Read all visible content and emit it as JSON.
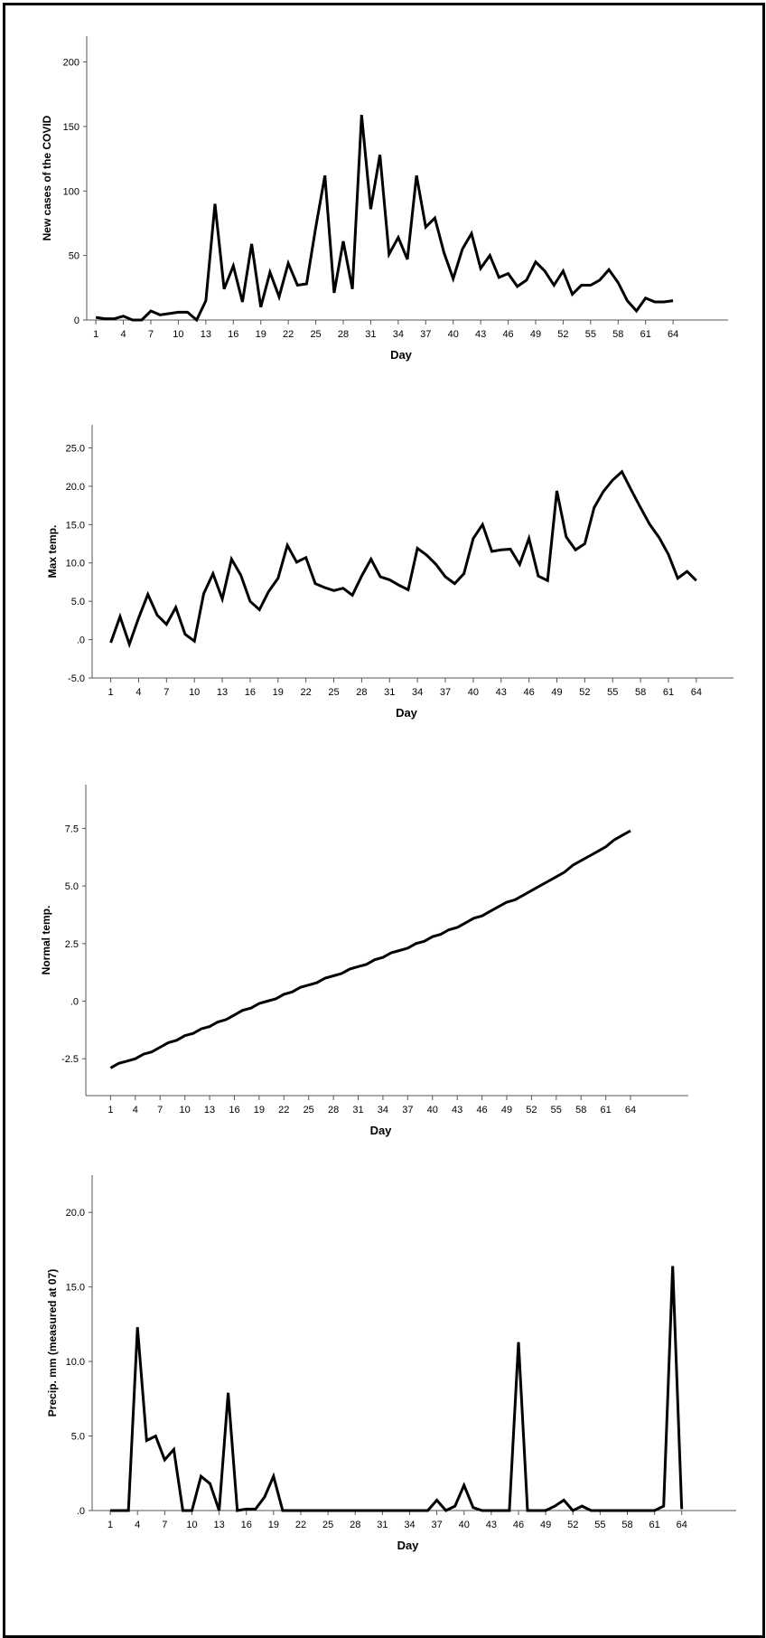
{
  "chart_data": [
    {
      "type": "line",
      "xlabel": "Day",
      "ylabel": "New cases of the COVID",
      "x_ticks": [
        "1",
        "4",
        "7",
        "10",
        "13",
        "16",
        "19",
        "22",
        "25",
        "28",
        "31",
        "34",
        "37",
        "40",
        "43",
        "46",
        "49",
        "52",
        "55",
        "58",
        "61",
        "64"
      ],
      "y_ticks": [
        "0",
        "50",
        "100",
        "150",
        "200"
      ],
      "y_tick_values": [
        0,
        50,
        100,
        150,
        200
      ],
      "ylim": [
        0,
        220
      ],
      "xlim": [
        0,
        70
      ],
      "series": [
        {
          "values": [
            2,
            1,
            1,
            3,
            0,
            0,
            7,
            4,
            5,
            6,
            6,
            0,
            15,
            90,
            24,
            42,
            14,
            59,
            10,
            37,
            18,
            44,
            27,
            28,
            72,
            112,
            21,
            61,
            24,
            159,
            86,
            128,
            51,
            64,
            47,
            112,
            72,
            79,
            52,
            32,
            55,
            67,
            40,
            50,
            33,
            36,
            26,
            31,
            45,
            38,
            27,
            38,
            20,
            27,
            27,
            31,
            39,
            29,
            15,
            7,
            17,
            14,
            14,
            15
          ]
        }
      ]
    },
    {
      "type": "line",
      "xlabel": "Day",
      "ylabel": "Max temp.",
      "x_ticks": [
        "1",
        "4",
        "7",
        "10",
        "13",
        "16",
        "19",
        "22",
        "25",
        "28",
        "31",
        "34",
        "37",
        "40",
        "43",
        "46",
        "49",
        "52",
        "55",
        "58",
        "61",
        "64"
      ],
      "y_ticks": [
        "-5.0",
        ".0",
        "5.0",
        "10.0",
        "15.0",
        "20.0",
        "25.0"
      ],
      "y_tick_values": [
        -5,
        0,
        5,
        10,
        15,
        20,
        25
      ],
      "ylim": [
        -5,
        28
      ],
      "xlim": [
        -1,
        68
      ],
      "series": [
        {
          "values": [
            -0.4,
            3,
            -0.6,
            2.8,
            5.9,
            3.2,
            2,
            4.2,
            0.7,
            -0.2,
            6,
            8.6,
            5.3,
            10.5,
            8.4,
            5,
            3.9,
            6.3,
            8,
            12.3,
            10.1,
            10.7,
            7.3,
            6.8,
            6.4,
            6.7,
            5.8,
            8.3,
            10.5,
            8.2,
            7.8,
            7.1,
            6.5,
            11.9,
            11,
            9.8,
            8.2,
            7.3,
            8.6,
            13.2,
            15,
            11.5,
            11.7,
            11.8,
            9.8,
            13.2,
            8.3,
            7.7,
            19.4,
            13.4,
            11.7,
            12.5,
            17.2,
            19.3,
            20.8,
            21.9,
            19.5,
            17.2,
            15,
            13.3,
            11.1,
            8,
            8.9,
            7.7
          ]
        }
      ]
    },
    {
      "type": "line",
      "xlabel": "Day",
      "ylabel": "Normal temp.",
      "x_ticks": [
        "1",
        "4",
        "7",
        "10",
        "13",
        "16",
        "19",
        "22",
        "25",
        "28",
        "31",
        "34",
        "37",
        "40",
        "43",
        "46",
        "49",
        "52",
        "55",
        "58",
        "61",
        "64"
      ],
      "y_ticks": [
        "-2.5",
        ".0",
        "2.5",
        "5.0",
        "7.5"
      ],
      "y_tick_values": [
        -2.5,
        0,
        2.5,
        5,
        7.5
      ],
      "ylim": [
        -4.1,
        9.4
      ],
      "xlim": [
        -2,
        71
      ],
      "series": [
        {
          "values": [
            -2.9,
            -2.7,
            -2.6,
            -2.5,
            -2.3,
            -2.2,
            -2.0,
            -1.8,
            -1.7,
            -1.5,
            -1.4,
            -1.2,
            -1.1,
            -0.9,
            -0.8,
            -0.6,
            -0.4,
            -0.3,
            -0.1,
            0.0,
            0.1,
            0.3,
            0.4,
            0.6,
            0.7,
            0.8,
            1.0,
            1.1,
            1.2,
            1.4,
            1.5,
            1.6,
            1.8,
            1.9,
            2.1,
            2.2,
            2.3,
            2.5,
            2.6,
            2.8,
            2.9,
            3.1,
            3.2,
            3.4,
            3.6,
            3.7,
            3.9,
            4.1,
            4.3,
            4.4,
            4.6,
            4.8,
            5.0,
            5.2,
            5.4,
            5.6,
            5.9,
            6.1,
            6.3,
            6.5,
            6.7,
            7.0,
            7.2,
            7.4
          ]
        }
      ]
    },
    {
      "type": "line",
      "xlabel": "Day",
      "ylabel": "Precip. mm (measured at 07)",
      "x_ticks": [
        "1",
        "4",
        "7",
        "10",
        "13",
        "16",
        "19",
        "22",
        "25",
        "28",
        "31",
        "34",
        "37",
        "40",
        "43",
        "46",
        "49",
        "52",
        "55",
        "58",
        "61",
        "64"
      ],
      "y_ticks": [
        ".0",
        "5.0",
        "10.0",
        "15.0",
        "20.0"
      ],
      "y_tick_values": [
        0,
        5,
        10,
        15,
        20
      ],
      "ylim": [
        0,
        22.5
      ],
      "xlim": [
        -1,
        70
      ],
      "series": [
        {
          "values": [
            0,
            0,
            0,
            12.3,
            4.7,
            5,
            3.4,
            4.1,
            0,
            0,
            2.3,
            1.8,
            0,
            7.9,
            0,
            0.1,
            0.1,
            0.9,
            2.3,
            0,
            0,
            0,
            0,
            0,
            0,
            0,
            0,
            0,
            0,
            0,
            0,
            0,
            0,
            0,
            0,
            0,
            0.7,
            0,
            0.3,
            1.7,
            0.2,
            0,
            0,
            0,
            0,
            11.3,
            0,
            0,
            0,
            0.3,
            0.7,
            0,
            0.3,
            0,
            0,
            0,
            0,
            0,
            0,
            0,
            0,
            0.3,
            16.4,
            0.1
          ]
        }
      ]
    }
  ]
}
